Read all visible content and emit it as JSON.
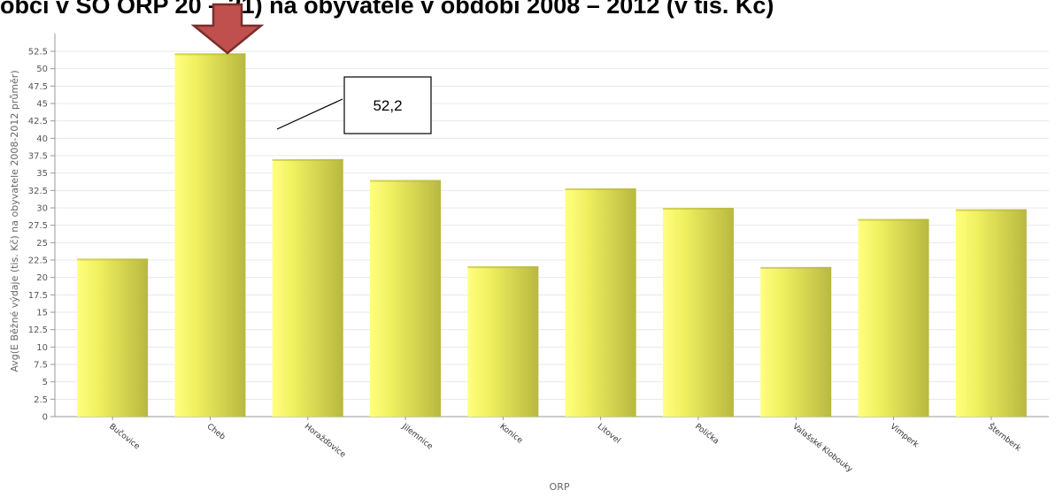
{
  "title": "obcí v SO ORP 20 – 21) na obyvatele v období 2008 – 2012 (v tis. Kč)",
  "colors": {
    "bar_light": "#ffff80",
    "bar_mid": "#f0f060",
    "bar_dark": "#b8b840",
    "arrow_fill": "#c0504d",
    "arrow_stroke": "#7a2e2c",
    "grid": "#e8e8e8",
    "axis": "#999999"
  },
  "chart_data": {
    "type": "bar",
    "categories": [
      "Bučovice",
      "Cheb",
      "Horažďovice",
      "Jilemnice",
      "Konice",
      "Litovel",
      "Polička",
      "Valašské Klobouky",
      "Vimperk",
      "Šternberk"
    ],
    "values": [
      22.7,
      52.2,
      37.0,
      34.0,
      21.6,
      32.8,
      30.0,
      21.5,
      28.4,
      29.8
    ],
    "xlabel": "ORP",
    "ylabel": "Avg(E Běžné výdaje (tis. Kč) na obyvatele 2008-2012 průměr)",
    "ylim": [
      0,
      52.5
    ],
    "ytick_step": 2.5,
    "yticks": [
      "0",
      "2.5",
      "5",
      "7.5",
      "10",
      "12.5",
      "15",
      "17.5",
      "20",
      "22.5",
      "25",
      "27.5",
      "30",
      "32.5",
      "35",
      "37.5",
      "40",
      "42.5",
      "45",
      "47.5",
      "50",
      "52.5"
    ],
    "grid": true,
    "highlight": {
      "category": "Cheb",
      "label": "52,2",
      "marker": "down-arrow"
    }
  }
}
